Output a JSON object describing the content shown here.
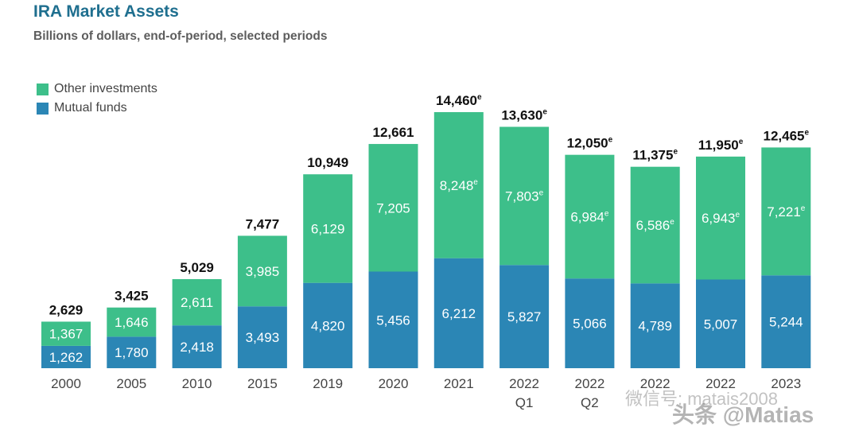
{
  "header": {
    "title": "IRA Market Assets",
    "subtitle": "Billions of dollars, end-of-period, selected periods"
  },
  "colors": {
    "other": "#3dbf8a",
    "mutual": "#2b86b5",
    "title": "#1f6f8f"
  },
  "chart_data": {
    "type": "bar",
    "stacked": true,
    "title": "IRA Market Assets",
    "subtitle": "Billions of dollars, end-of-period, selected periods",
    "categories": [
      "2000",
      "2005",
      "2010",
      "2015",
      "2019",
      "2020",
      "2021",
      "2022 Q1",
      "2022 Q2",
      "2022",
      "2022",
      "2023"
    ],
    "category_lines": [
      [
        "2000"
      ],
      [
        "2005"
      ],
      [
        "2010"
      ],
      [
        "2015"
      ],
      [
        "2019"
      ],
      [
        "2020"
      ],
      [
        "2021"
      ],
      [
        "2022",
        "Q1"
      ],
      [
        "2022",
        "Q2"
      ],
      [
        "2022"
      ],
      [
        "2022"
      ],
      [
        "2023"
      ]
    ],
    "series": [
      {
        "name": "Mutual funds",
        "values": [
          1262,
          1780,
          2418,
          3493,
          4820,
          5456,
          6212,
          5827,
          5066,
          4789,
          5007,
          5244
        ],
        "labels": [
          "1,262",
          "1,780",
          "2,418",
          "3,493",
          "4,820",
          "5,456",
          "6,212",
          "5,827",
          "5,066",
          "4,789",
          "5,007",
          "5,244"
        ]
      },
      {
        "name": "Other investments",
        "values": [
          1367,
          1646,
          2611,
          3985,
          6129,
          7205,
          8248,
          7803,
          6984,
          6586,
          6943,
          7221
        ],
        "labels": [
          "1,367",
          "1,646",
          "2,611",
          "3,985",
          "6,129",
          "7,205",
          "8,248",
          "7,803",
          "6,984",
          "6,586",
          "6,943",
          "7,221"
        ],
        "estimated": [
          false,
          false,
          false,
          false,
          false,
          false,
          true,
          true,
          true,
          true,
          true,
          true
        ]
      }
    ],
    "totals": [
      2629,
      3425,
      5029,
      7477,
      10949,
      12661,
      14460,
      13630,
      12050,
      11375,
      11950,
      12465
    ],
    "total_labels": [
      "2,629",
      "3,425",
      "5,029",
      "7,477",
      "10,949",
      "12,661",
      "14,460",
      "13,630",
      "12,050",
      "11,375",
      "11,950",
      "12,465"
    ],
    "total_estimated": [
      false,
      false,
      false,
      false,
      false,
      false,
      true,
      true,
      true,
      true,
      true,
      true
    ],
    "estimate_marker": "e",
    "legend": [
      "Other investments",
      "Mutual funds"
    ],
    "legend_position": "top-left",
    "ylim": [
      0,
      14460
    ],
    "grid": false
  },
  "watermark": {
    "line1": "微信号: matais2008",
    "line2": "头条 @Matias"
  }
}
